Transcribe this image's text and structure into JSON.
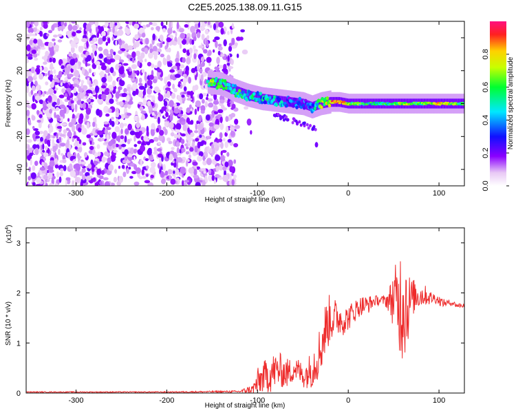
{
  "title": "C2E5.2025.138.09.11.G15",
  "chart_data": [
    {
      "type": "heatmap",
      "xlabel": "Height of straight line (km)",
      "ylabel": "Frequency (Hz)",
      "xlim": [
        -355,
        128
      ],
      "ylim": [
        -50,
        50
      ],
      "x_ticks": [
        -300,
        -200,
        -100,
        0,
        100
      ],
      "x_tick_labels": [
        "-300",
        "-200",
        "-100",
        "0",
        "100"
      ],
      "y_ticks": [
        -40,
        -20,
        0,
        20,
        40
      ],
      "y_tick_labels": [
        "-40",
        "-20",
        "0",
        "20",
        "40"
      ],
      "colorbar": {
        "label": "Normalized spectral amplitude",
        "range": [
          0,
          1
        ],
        "ticks": [
          0.0,
          0.2,
          0.4,
          0.6,
          0.8
        ],
        "tick_labels": [
          "0.0",
          "0.2",
          "0.4",
          "0.6",
          "0.8"
        ]
      },
      "noise_region": {
        "x": [
          -355,
          -125
        ],
        "y": [
          -50,
          50
        ],
        "amplitude": [
          0.0,
          0.15
        ]
      },
      "signal_track": {
        "x": [
          -155,
          -140,
          -125,
          -110,
          -95,
          -80,
          -65,
          -50,
          -40,
          -30,
          -20,
          -10,
          0,
          20,
          40,
          60,
          80,
          100,
          128
        ],
        "frequency": [
          13,
          12,
          8,
          5,
          3,
          2,
          1,
          0,
          -2,
          0,
          1,
          1,
          0,
          0,
          0,
          0,
          0,
          0,
          0
        ],
        "amplitude": [
          0.6,
          0.5,
          0.5,
          0.5,
          0.4,
          0.4,
          0.3,
          0.3,
          0.4,
          0.6,
          0.8,
          0.9,
          0.7,
          0.5,
          0.5,
          0.7,
          0.6,
          0.8,
          0.5
        ]
      }
    },
    {
      "type": "line",
      "xlabel": "Height of straight line (km)",
      "ylabel": "SNR (10 * v/v)",
      "y_multiplier": "(x10",
      "y_multiplier_exp": "4",
      "y_multiplier_close": ")",
      "xlim": [
        -355,
        128
      ],
      "ylim": [
        0,
        3.3
      ],
      "x_ticks": [
        -300,
        -200,
        -100,
        0,
        100
      ],
      "x_tick_labels": [
        "-300",
        "-200",
        "-100",
        "0",
        "100"
      ],
      "y_ticks": [
        0,
        1,
        2,
        3
      ],
      "y_tick_labels": [
        "0",
        "1",
        "2",
        "3"
      ],
      "color": "#ee2b2b",
      "series": [
        {
          "x": [
            -355,
            -300,
            -200,
            -120,
            -105,
            -100,
            -95,
            -90,
            -85,
            -80,
            -75,
            -70,
            -65,
            -60,
            -55,
            -50,
            -45,
            -40,
            -35,
            -30,
            -25,
            -20,
            -15,
            -10,
            -5,
            0,
            5,
            10,
            15,
            20,
            25,
            30,
            35,
            40,
            45,
            50,
            55,
            60,
            62,
            65,
            70,
            75,
            80,
            85,
            90,
            95,
            100,
            105,
            110,
            115,
            120,
            128
          ],
          "values": [
            0.02,
            0.02,
            0.02,
            0.03,
            0.08,
            0.2,
            0.3,
            0.35,
            0.4,
            0.45,
            0.45,
            0.4,
            0.4,
            0.5,
            0.45,
            0.35,
            0.4,
            0.5,
            0.7,
            0.9,
            1.3,
            1.5,
            1.5,
            1.5,
            1.45,
            1.5,
            1.6,
            1.7,
            1.75,
            1.75,
            1.8,
            1.85,
            1.85,
            1.85,
            1.85,
            1.9,
            1.8,
            1.9,
            2.0,
            1.7,
            1.9,
            1.95,
            1.95,
            1.95,
            1.9,
            1.9,
            1.85,
            1.8,
            1.8,
            1.8,
            1.75,
            1.75
          ],
          "noise": [
            0.01,
            0.01,
            0.01,
            0.02,
            0.1,
            0.3,
            0.3,
            0.35,
            0.4,
            0.35,
            0.35,
            0.3,
            0.3,
            0.25,
            0.25,
            0.25,
            0.3,
            0.4,
            0.5,
            0.5,
            0.55,
            0.5,
            0.4,
            0.35,
            0.3,
            0.25,
            0.25,
            0.2,
            0.2,
            0.2,
            0.15,
            0.1,
            0.1,
            0.1,
            0.25,
            0.6,
            0.9,
            1.4,
            1.4,
            0.8,
            0.4,
            0.3,
            0.25,
            0.2,
            0.15,
            0.1,
            0.1,
            0.08,
            0.06,
            0.05,
            0.05,
            0.05
          ]
        }
      ]
    }
  ]
}
